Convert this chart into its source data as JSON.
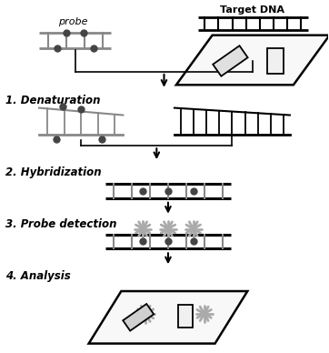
{
  "background_color": "#ffffff",
  "steps": [
    "1. Denaturation",
    "2. Hybridization",
    "3. Probe detection",
    "4. Analysis"
  ],
  "probe_label": "probe",
  "target_label": "Target DNA",
  "black": "#000000",
  "dark_gray": "#444444",
  "mid_gray": "#888888",
  "light_gray": "#bbbbbb",
  "star_gray": "#aaaaaa"
}
